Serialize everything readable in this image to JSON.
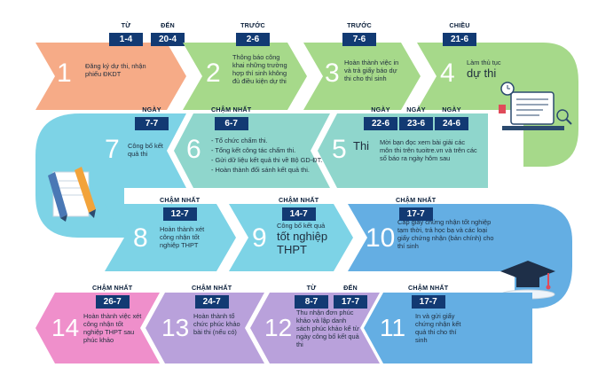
{
  "colors": {
    "orange": "#f6ab87",
    "green": "#a6d98a",
    "teal_light": "#8fd6cc",
    "cyan": "#7dd3e6",
    "blue": "#64aee3",
    "purple": "#b9a1db",
    "pink": "#ef8fcb",
    "date_box": "#123a73"
  },
  "steps": [
    {
      "id": 1,
      "number": "1",
      "text": "Đăng ký dự thi, nhận phiếu ĐKDT",
      "tags": [
        {
          "label": "TỪ",
          "date": "1-4"
        },
        {
          "label": "ĐẾN",
          "date": "20-4"
        }
      ]
    },
    {
      "id": 2,
      "number": "2",
      "text": "Thông báo công khai những trường hợp thí sinh không đủ điều kiện dự thi",
      "tags": [
        {
          "label": "TRƯỚC",
          "date": "2-6"
        }
      ]
    },
    {
      "id": 3,
      "number": "3",
      "text": "Hoàn thành việc in và trả giấy báo dự thi cho thí sinh",
      "tags": [
        {
          "label": "TRƯỚC",
          "date": "7-6"
        }
      ]
    },
    {
      "id": 4,
      "number": "4",
      "text": "Làm thủ tục",
      "text_big": "dự thi",
      "tags": [
        {
          "label": "CHIỀU",
          "date": "21-6"
        }
      ]
    },
    {
      "id": 5,
      "number": "5",
      "text_big": "Thi",
      "text": "Mời bạn đọc xem bài giải các môn thi trên tuoitre.vn và trên các số báo ra ngày hôm sau",
      "tags": [
        {
          "label": "NGÀY",
          "date": "22-6"
        },
        {
          "label": "NGÀY",
          "date": "23-6"
        },
        {
          "label": "NGÀY",
          "date": "24-6"
        }
      ]
    },
    {
      "id": 6,
      "number": "6",
      "bullets": [
        "Tổ chức chấm thi.",
        "Tổng kết công tác chấm thi.",
        "Gửi dữ liệu kết quả thi về Bộ GD-ĐT.",
        "Hoàn thành đối sánh kết quả thi."
      ],
      "tags": [
        {
          "label": "CHẬM NHẤT",
          "date": "6-7"
        }
      ]
    },
    {
      "id": 7,
      "number": "7",
      "text": "Công bố kết quả thi",
      "tags": [
        {
          "label": "NGÀY",
          "date": "7-7"
        }
      ]
    },
    {
      "id": 8,
      "number": "8",
      "text": "Hoàn thành xét công nhận tốt nghiệp THPT",
      "tags": [
        {
          "label": "CHẬM NHẤT",
          "date": "12-7"
        }
      ]
    },
    {
      "id": 9,
      "number": "9",
      "text": "Công bố kết quả",
      "text_big": "tốt nghiệp THPT",
      "tags": [
        {
          "label": "CHẬM NHẤT",
          "date": "14-7"
        }
      ]
    },
    {
      "id": 10,
      "number": "10",
      "text": "Cấp giấy chứng nhận tốt nghiệp tạm thời, trả học bạ và các loại giấy chứng nhận (bản chính) cho thí sinh",
      "tags": [
        {
          "label": "CHẬM NHẤT",
          "date": "17-7"
        }
      ]
    },
    {
      "id": 11,
      "number": "11",
      "text": "In và gửi giấy chứng nhận kết quả thi cho thí sinh",
      "tags": [
        {
          "label": "CHẬM NHẤT",
          "date": "17-7"
        }
      ]
    },
    {
      "id": 12,
      "number": "12",
      "text": "Thu nhận đơn phúc khảo và lập danh sách phúc khảo kể từ ngày công bố kết quả thi",
      "tags": [
        {
          "label": "TỪ",
          "date": "8-7"
        },
        {
          "label": "ĐẾN",
          "date": "17-7"
        }
      ]
    },
    {
      "id": 13,
      "number": "13",
      "text": "Hoàn thành tổ chức phúc khảo bài thi (nếu có)",
      "tags": [
        {
          "label": "CHẬM NHẤT",
          "date": "24-7"
        }
      ]
    },
    {
      "id": 14,
      "number": "14",
      "text": "Hoàn thành việc xét công nhận tốt nghiệp THPT sau phúc khảo",
      "tags": [
        {
          "label": "CHẬM NHẤT",
          "date": "26-7"
        }
      ]
    }
  ],
  "icons": [
    "exam-desk-illustration",
    "pencils-paper-illustration",
    "graduation-cap-illustration"
  ]
}
